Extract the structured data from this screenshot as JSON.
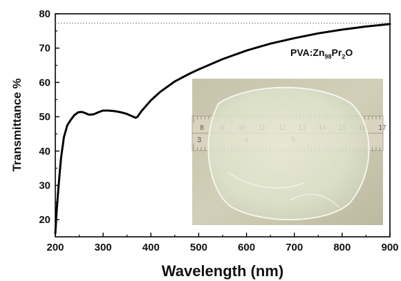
{
  "chart_data": {
    "type": "line",
    "title": "",
    "xlabel": "Wavelength (nm)",
    "ylabel": "Transmittance %",
    "xlim": [
      200,
      900
    ],
    "ylim": [
      15,
      80
    ],
    "xticks": [
      200,
      300,
      400,
      500,
      600,
      700,
      800,
      900
    ],
    "yticks": [
      20,
      30,
      40,
      50,
      60,
      70,
      80
    ],
    "grid": false,
    "annotation": {
      "prefix": "PVA:Zn",
      "sub1": "98",
      "mid": "Pr",
      "sub2": "2",
      "suffix": "O"
    },
    "reference_line_y": 77.3,
    "inset": "photograph of transparent PVA:Zn98Pr2O film on a ruler",
    "ruler_numbers_top": [
      "8",
      "9",
      "10",
      "11",
      "12",
      "13",
      "14",
      "15",
      "16",
      "17"
    ],
    "ruler_numbers_bottom": [
      "3",
      "4",
      "5"
    ],
    "series": [
      {
        "x": [
          200,
          203,
          207,
          212,
          218,
          225,
          232,
          240,
          248,
          255,
          262,
          270,
          280,
          290,
          300,
          310,
          320,
          330,
          340,
          350,
          360,
          368,
          372,
          380,
          390,
          400,
          420,
          450,
          480,
          500,
          550,
          600,
          650,
          700,
          750,
          800,
          850,
          900
        ],
        "y": [
          16,
          23,
          30,
          38,
          44,
          47.5,
          49,
          50.5,
          51.3,
          51.4,
          51.1,
          50.6,
          50.7,
          51.3,
          51.8,
          51.8,
          51.7,
          51.5,
          51.2,
          50.8,
          50.2,
          49.7,
          50.0,
          51.6,
          53.2,
          54.8,
          57.3,
          60.3,
          62.5,
          63.8,
          66.8,
          69.3,
          71.3,
          72.9,
          74.3,
          75.4,
          76.3,
          77.0
        ]
      }
    ]
  }
}
